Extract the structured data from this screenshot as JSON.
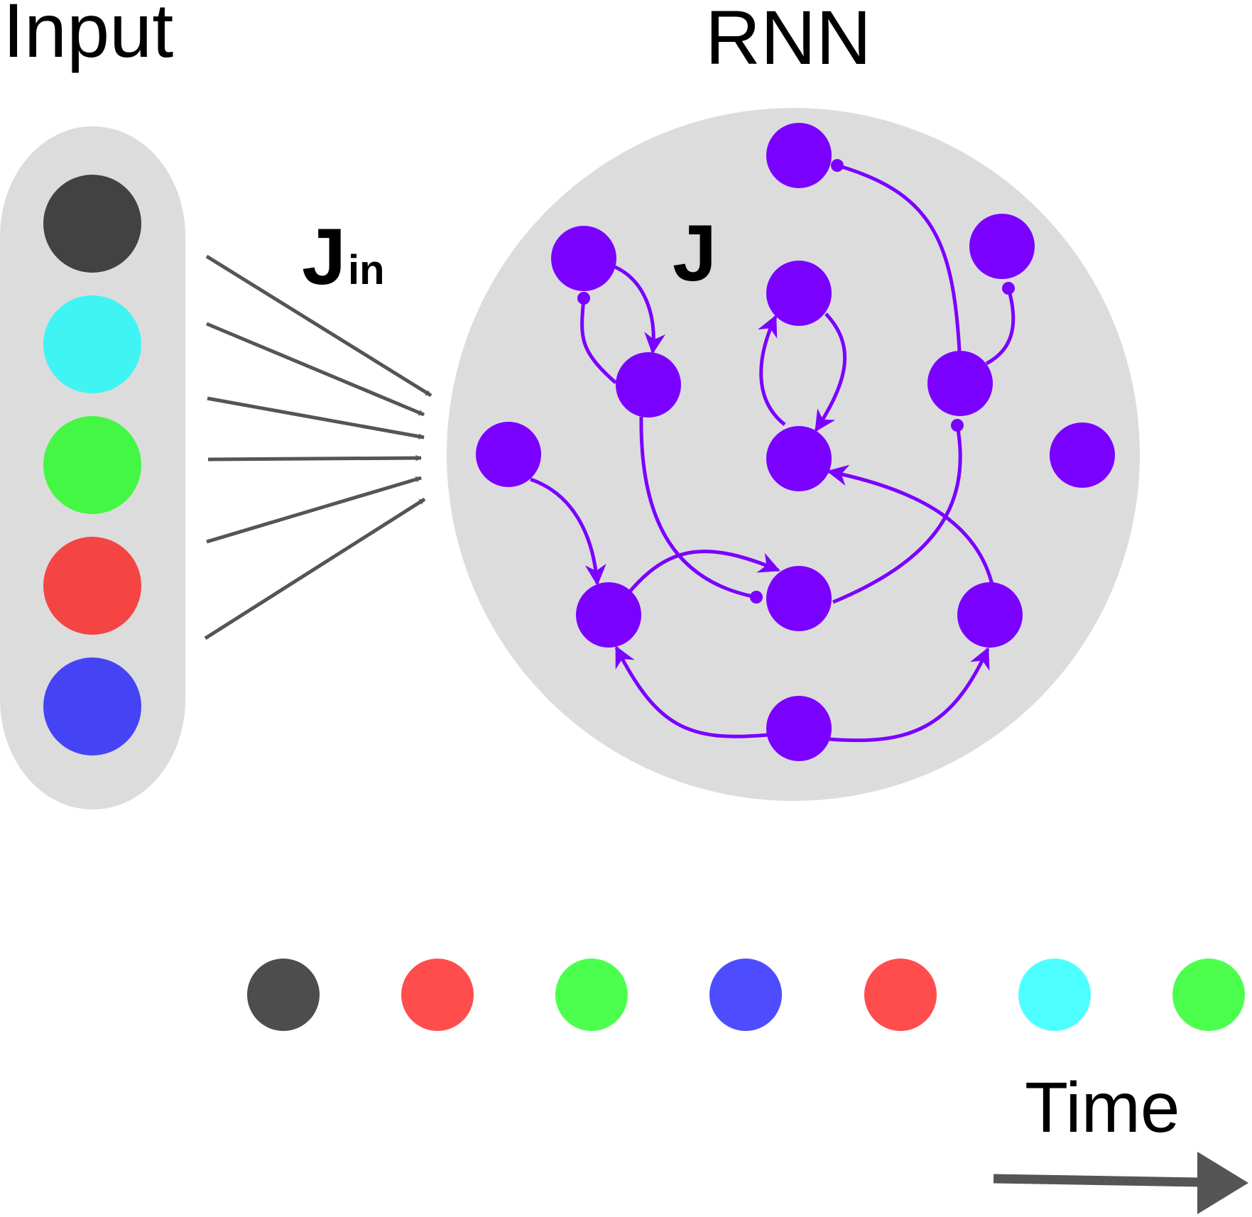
{
  "labels": {
    "input_title": "Input",
    "rnn_title": "RNN",
    "j_in": "J",
    "j_in_subscript": "in",
    "j": "J",
    "time": "Time"
  },
  "colors": {
    "panel": "#dcdcdd",
    "neuron": "#7a00ff",
    "arrow_gray": "#555555",
    "input_units": [
      "#424242",
      "#40f4f4",
      "#44f744",
      "#f44444",
      "#4444f4"
    ],
    "sequence": [
      "#4d4d4d",
      "#ff4d4d",
      "#4dff4d",
      "#4d4dff",
      "#ff4d4d",
      "#4dffff",
      "#4dff4d"
    ]
  }
}
